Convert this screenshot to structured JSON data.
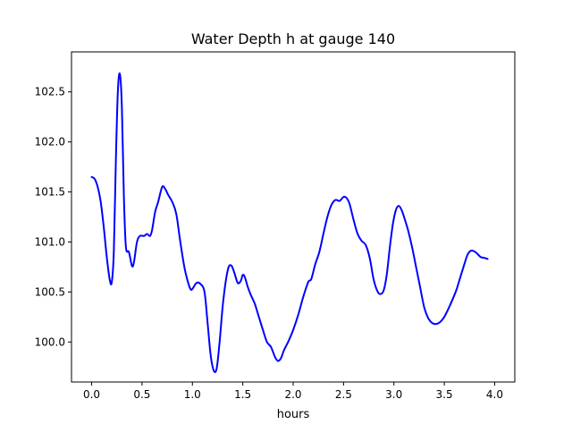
{
  "chart_data": {
    "type": "line",
    "title": "Water Depth h at gauge 140",
    "xlabel": "hours",
    "ylabel": "",
    "xlim": [
      -0.2,
      4.2
    ],
    "ylim": [
      99.6,
      102.9
    ],
    "grid": false,
    "legend": "none",
    "x_ticks": [
      0.0,
      0.5,
      1.0,
      1.5,
      2.0,
      2.5,
      3.0,
      3.5,
      4.0
    ],
    "x_tick_labels": [
      "0.0",
      "0.5",
      "1.0",
      "1.5",
      "2.0",
      "2.5",
      "3.0",
      "3.5",
      "4.0"
    ],
    "y_ticks": [
      100.0,
      100.5,
      101.0,
      101.5,
      102.0,
      102.5
    ],
    "y_tick_labels": [
      "100.0",
      "100.5",
      "101.0",
      "101.5",
      "102.0",
      "102.5"
    ],
    "series": [
      {
        "color": "#0000ff",
        "points": [
          [
            0.0,
            101.65
          ],
          [
            0.03,
            101.63
          ],
          [
            0.06,
            101.55
          ],
          [
            0.09,
            101.4
          ],
          [
            0.12,
            101.15
          ],
          [
            0.15,
            100.85
          ],
          [
            0.18,
            100.62
          ],
          [
            0.2,
            100.6
          ],
          [
            0.22,
            100.9
          ],
          [
            0.24,
            101.8
          ],
          [
            0.26,
            102.5
          ],
          [
            0.28,
            102.68
          ],
          [
            0.3,
            102.35
          ],
          [
            0.32,
            101.45
          ],
          [
            0.34,
            100.95
          ],
          [
            0.37,
            100.9
          ],
          [
            0.4,
            100.76
          ],
          [
            0.42,
            100.8
          ],
          [
            0.45,
            101.0
          ],
          [
            0.48,
            101.06
          ],
          [
            0.52,
            101.06
          ],
          [
            0.55,
            101.08
          ],
          [
            0.58,
            101.06
          ],
          [
            0.6,
            101.12
          ],
          [
            0.63,
            101.3
          ],
          [
            0.66,
            101.4
          ],
          [
            0.7,
            101.55
          ],
          [
            0.73,
            101.53
          ],
          [
            0.76,
            101.47
          ],
          [
            0.8,
            101.4
          ],
          [
            0.84,
            101.28
          ],
          [
            0.88,
            101.0
          ],
          [
            0.92,
            100.75
          ],
          [
            0.95,
            100.62
          ],
          [
            0.98,
            100.53
          ],
          [
            1.0,
            100.53
          ],
          [
            1.04,
            100.59
          ],
          [
            1.08,
            100.58
          ],
          [
            1.12,
            100.5
          ],
          [
            1.15,
            100.2
          ],
          [
            1.18,
            99.88
          ],
          [
            1.21,
            99.72
          ],
          [
            1.24,
            99.73
          ],
          [
            1.27,
            100.0
          ],
          [
            1.3,
            100.35
          ],
          [
            1.33,
            100.6
          ],
          [
            1.36,
            100.75
          ],
          [
            1.39,
            100.76
          ],
          [
            1.42,
            100.68
          ],
          [
            1.45,
            100.59
          ],
          [
            1.48,
            100.61
          ],
          [
            1.5,
            100.67
          ],
          [
            1.52,
            100.65
          ],
          [
            1.55,
            100.55
          ],
          [
            1.58,
            100.47
          ],
          [
            1.62,
            100.38
          ],
          [
            1.66,
            100.25
          ],
          [
            1.7,
            100.12
          ],
          [
            1.74,
            100.0
          ],
          [
            1.78,
            99.95
          ],
          [
            1.82,
            99.85
          ],
          [
            1.85,
            99.81
          ],
          [
            1.88,
            99.84
          ],
          [
            1.91,
            99.92
          ],
          [
            1.95,
            100.0
          ],
          [
            2.0,
            100.12
          ],
          [
            2.05,
            100.27
          ],
          [
            2.1,
            100.45
          ],
          [
            2.15,
            100.6
          ],
          [
            2.18,
            100.63
          ],
          [
            2.22,
            100.78
          ],
          [
            2.26,
            100.9
          ],
          [
            2.3,
            101.08
          ],
          [
            2.34,
            101.25
          ],
          [
            2.38,
            101.37
          ],
          [
            2.42,
            101.42
          ],
          [
            2.46,
            101.41
          ],
          [
            2.5,
            101.45
          ],
          [
            2.53,
            101.44
          ],
          [
            2.56,
            101.38
          ],
          [
            2.6,
            101.22
          ],
          [
            2.64,
            101.08
          ],
          [
            2.68,
            101.01
          ],
          [
            2.72,
            100.97
          ],
          [
            2.76,
            100.84
          ],
          [
            2.8,
            100.62
          ],
          [
            2.84,
            100.5
          ],
          [
            2.87,
            100.48
          ],
          [
            2.9,
            100.52
          ],
          [
            2.93,
            100.68
          ],
          [
            2.96,
            100.95
          ],
          [
            2.99,
            101.18
          ],
          [
            3.02,
            101.32
          ],
          [
            3.05,
            101.36
          ],
          [
            3.08,
            101.31
          ],
          [
            3.11,
            101.22
          ],
          [
            3.14,
            101.12
          ],
          [
            3.18,
            100.95
          ],
          [
            3.22,
            100.75
          ],
          [
            3.26,
            100.55
          ],
          [
            3.3,
            100.35
          ],
          [
            3.34,
            100.24
          ],
          [
            3.38,
            100.19
          ],
          [
            3.42,
            100.18
          ],
          [
            3.46,
            100.2
          ],
          [
            3.5,
            100.25
          ],
          [
            3.54,
            100.33
          ],
          [
            3.58,
            100.42
          ],
          [
            3.62,
            100.52
          ],
          [
            3.66,
            100.65
          ],
          [
            3.7,
            100.78
          ],
          [
            3.73,
            100.87
          ],
          [
            3.76,
            100.91
          ],
          [
            3.79,
            100.91
          ],
          [
            3.82,
            100.89
          ],
          [
            3.86,
            100.85
          ],
          [
            3.9,
            100.84
          ],
          [
            3.93,
            100.83
          ]
        ]
      }
    ]
  }
}
